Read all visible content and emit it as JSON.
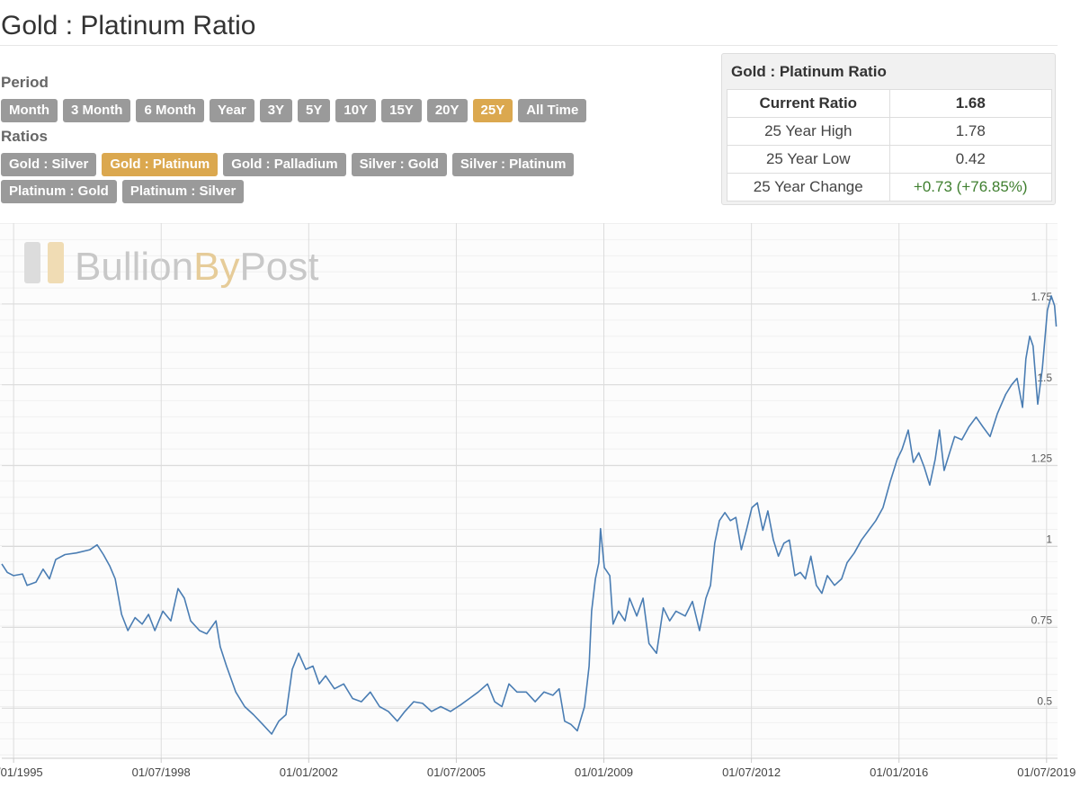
{
  "header": {
    "title": "Gold : Platinum Ratio"
  },
  "controls": {
    "period_label": "Period",
    "period_buttons": [
      "Month",
      "3 Month",
      "6 Month",
      "Year",
      "3Y",
      "5Y",
      "10Y",
      "15Y",
      "20Y",
      "25Y",
      "All Time"
    ],
    "period_selected_index": 9,
    "ratios_label": "Ratios",
    "ratio_buttons": [
      "Gold : Silver",
      "Gold : Platinum",
      "Gold : Palladium",
      "Silver : Gold",
      "Silver : Platinum",
      "Platinum : Gold",
      "Platinum : Silver"
    ],
    "ratio_selected_index": 1
  },
  "stats": {
    "title": "Gold : Platinum Ratio",
    "rows": [
      [
        "Current Ratio",
        "1.68"
      ],
      [
        "25 Year High",
        "1.78"
      ],
      [
        "25 Year Low",
        "0.42"
      ],
      [
        "25 Year Change",
        "+0.73 (+76.85%)"
      ]
    ]
  },
  "chart_data": {
    "type": "line",
    "watermark": [
      "Bullion",
      "By",
      "Post"
    ],
    "color": "#4a7db3",
    "grid": true,
    "xlim": [
      1994.72,
      2019.76
    ],
    "ylim": [
      0.345,
      2.0
    ],
    "xticks": [
      {
        "value": 1995,
        "label": "01/01/1995"
      },
      {
        "value": 1998.5,
        "label": "01/07/1998"
      },
      {
        "value": 2002,
        "label": "01/01/2002"
      },
      {
        "value": 2005.5,
        "label": "01/07/2005"
      },
      {
        "value": 2009,
        "label": "01/01/2009"
      },
      {
        "value": 2012.5,
        "label": "01/07/2012"
      },
      {
        "value": 2016,
        "label": "01/01/2016"
      },
      {
        "value": 2019.5,
        "label": "01/07/2019"
      }
    ],
    "yticks": [
      0.5,
      0.75,
      1,
      1.25,
      1.5,
      1.75
    ],
    "x": [
      1994.72,
      1994.85,
      1995.0,
      1995.21,
      1995.32,
      1995.53,
      1995.7,
      1995.85,
      1996.0,
      1996.22,
      1996.49,
      1996.81,
      1996.98,
      1997.13,
      1997.28,
      1997.41,
      1997.56,
      1997.71,
      1997.88,
      1998.05,
      1998.2,
      1998.35,
      1998.54,
      1998.73,
      1998.9,
      1999.05,
      1999.2,
      1999.41,
      1999.58,
      1999.8,
      1999.9,
      2000.05,
      2000.27,
      2000.48,
      2000.69,
      2000.91,
      2001.12,
      2001.29,
      2001.46,
      2001.61,
      2001.76,
      2001.93,
      2002.1,
      2002.25,
      2002.4,
      2002.61,
      2002.83,
      2003.04,
      2003.25,
      2003.46,
      2003.68,
      2003.89,
      2004.1,
      2004.28,
      2004.49,
      2004.7,
      2004.91,
      2005.13,
      2005.36,
      2005.6,
      2005.81,
      2006.02,
      2006.24,
      2006.41,
      2006.58,
      2006.75,
      2006.94,
      2007.16,
      2007.37,
      2007.58,
      2007.79,
      2007.94,
      2008.07,
      2008.22,
      2008.37,
      2008.54,
      2008.65,
      2008.71,
      2008.8,
      2008.88,
      2008.92,
      2009.01,
      2009.14,
      2009.22,
      2009.35,
      2009.5,
      2009.61,
      2009.78,
      2009.93,
      2010.07,
      2010.25,
      2010.41,
      2010.56,
      2010.71,
      2010.93,
      2011.1,
      2011.27,
      2011.42,
      2011.53,
      2011.63,
      2011.74,
      2011.87,
      2012.0,
      2012.13,
      2012.26,
      2012.38,
      2012.51,
      2012.64,
      2012.77,
      2012.89,
      2013.02,
      2013.14,
      2013.27,
      2013.4,
      2013.53,
      2013.66,
      2013.78,
      2013.91,
      2014.04,
      2014.17,
      2014.3,
      2014.47,
      2014.64,
      2014.77,
      2014.94,
      2015.11,
      2015.28,
      2015.45,
      2015.62,
      2015.79,
      2015.96,
      2016.07,
      2016.22,
      2016.34,
      2016.47,
      2016.6,
      2016.73,
      2016.86,
      2016.96,
      2017.07,
      2017.2,
      2017.32,
      2017.49,
      2017.66,
      2017.83,
      2017.99,
      2018.16,
      2018.33,
      2018.53,
      2018.67,
      2018.8,
      2018.93,
      2019.01,
      2019.1,
      2019.18,
      2019.29,
      2019.4,
      2019.52,
      2019.61,
      2019.69,
      2019.73
    ],
    "values": [
      0.946,
      0.92,
      0.91,
      0.915,
      0.88,
      0.89,
      0.93,
      0.9,
      0.96,
      0.975,
      0.98,
      0.99,
      1.005,
      0.975,
      0.94,
      0.9,
      0.79,
      0.74,
      0.78,
      0.76,
      0.79,
      0.74,
      0.8,
      0.77,
      0.87,
      0.84,
      0.77,
      0.74,
      0.73,
      0.77,
      0.69,
      0.63,
      0.55,
      0.505,
      0.48,
      0.45,
      0.42,
      0.46,
      0.48,
      0.62,
      0.67,
      0.62,
      0.63,
      0.575,
      0.6,
      0.56,
      0.575,
      0.53,
      0.52,
      0.55,
      0.505,
      0.49,
      0.46,
      0.49,
      0.52,
      0.515,
      0.49,
      0.505,
      0.49,
      0.51,
      0.53,
      0.55,
      0.575,
      0.52,
      0.505,
      0.575,
      0.55,
      0.55,
      0.52,
      0.55,
      0.54,
      0.56,
      0.46,
      0.45,
      0.43,
      0.505,
      0.63,
      0.8,
      0.9,
      0.95,
      1.055,
      0.935,
      0.91,
      0.76,
      0.8,
      0.77,
      0.84,
      0.785,
      0.84,
      0.7,
      0.67,
      0.81,
      0.77,
      0.8,
      0.785,
      0.83,
      0.74,
      0.84,
      0.88,
      1.01,
      1.08,
      1.105,
      1.08,
      1.09,
      0.99,
      1.05,
      1.12,
      1.135,
      1.05,
      1.11,
      1.02,
      0.97,
      1.01,
      1.02,
      0.91,
      0.92,
      0.9,
      0.97,
      0.88,
      0.855,
      0.91,
      0.88,
      0.9,
      0.95,
      0.98,
      1.02,
      1.05,
      1.08,
      1.12,
      1.2,
      1.27,
      1.3,
      1.36,
      1.26,
      1.29,
      1.245,
      1.19,
      1.27,
      1.36,
      1.235,
      1.29,
      1.34,
      1.33,
      1.37,
      1.4,
      1.37,
      1.34,
      1.41,
      1.47,
      1.5,
      1.52,
      1.43,
      1.58,
      1.65,
      1.62,
      1.44,
      1.55,
      1.73,
      1.775,
      1.745,
      1.68
    ]
  }
}
